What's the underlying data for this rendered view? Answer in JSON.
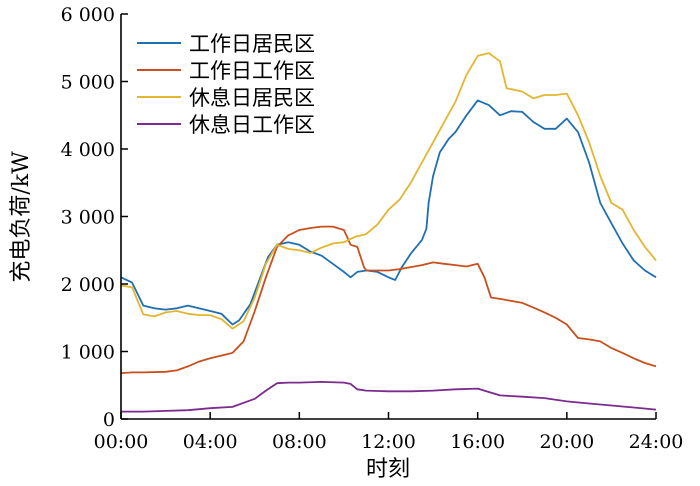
{
  "chart_data": {
    "type": "line",
    "title": "",
    "xlabel": "时刻",
    "ylabel": "充电负荷/kW",
    "xlim": [
      0,
      24
    ],
    "ylim": [
      0,
      6000
    ],
    "x_ticks": [
      0,
      4,
      8,
      12,
      16,
      20,
      24
    ],
    "x_tick_labels": [
      "00:00",
      "04:00",
      "08:00",
      "12:00",
      "16:00",
      "20:00",
      "24:00"
    ],
    "y_ticks": [
      0,
      1000,
      2000,
      3000,
      4000,
      5000,
      6000
    ],
    "y_tick_labels": [
      "0",
      "1 000",
      "2 000",
      "3 000",
      "4 000",
      "5 000",
      "6 000"
    ],
    "grid": false,
    "legend_position": "top-left",
    "series": [
      {
        "name": "工作日居民区",
        "color": "#1f6fb2",
        "points": [
          [
            0,
            2100
          ],
          [
            0.5,
            2020
          ],
          [
            1,
            1680
          ],
          [
            1.5,
            1640
          ],
          [
            2,
            1620
          ],
          [
            2.5,
            1640
          ],
          [
            3,
            1680
          ],
          [
            3.5,
            1640
          ],
          [
            4,
            1600
          ],
          [
            4.5,
            1560
          ],
          [
            5,
            1400
          ],
          [
            5.3,
            1460
          ],
          [
            5.8,
            1700
          ],
          [
            6.2,
            2050
          ],
          [
            6.6,
            2400
          ],
          [
            7,
            2580
          ],
          [
            7.5,
            2620
          ],
          [
            8,
            2580
          ],
          [
            8.5,
            2480
          ],
          [
            9,
            2420
          ],
          [
            9.5,
            2300
          ],
          [
            10,
            2180
          ],
          [
            10.3,
            2100
          ],
          [
            10.6,
            2180
          ],
          [
            11,
            2200
          ],
          [
            11.5,
            2180
          ],
          [
            12,
            2100
          ],
          [
            12.3,
            2060
          ],
          [
            12.6,
            2250
          ],
          [
            13,
            2450
          ],
          [
            13.5,
            2650
          ],
          [
            13.7,
            2820
          ],
          [
            13.8,
            3200
          ],
          [
            14,
            3600
          ],
          [
            14.3,
            3950
          ],
          [
            14.7,
            4150
          ],
          [
            15,
            4250
          ],
          [
            15.5,
            4500
          ],
          [
            16,
            4720
          ],
          [
            16.5,
            4650
          ],
          [
            17,
            4500
          ],
          [
            17.5,
            4560
          ],
          [
            18,
            4550
          ],
          [
            18.5,
            4400
          ],
          [
            19,
            4300
          ],
          [
            19.5,
            4300
          ],
          [
            20,
            4450
          ],
          [
            20.5,
            4250
          ],
          [
            21,
            3800
          ],
          [
            21.5,
            3200
          ],
          [
            22,
            2900
          ],
          [
            22.5,
            2600
          ],
          [
            23,
            2350
          ],
          [
            23.5,
            2200
          ],
          [
            24,
            2100
          ]
        ]
      },
      {
        "name": "工作日工作区",
        "color": "#c8501e",
        "points": [
          [
            0,
            680
          ],
          [
            0.5,
            690
          ],
          [
            1,
            690
          ],
          [
            2,
            700
          ],
          [
            2.5,
            720
          ],
          [
            3,
            780
          ],
          [
            3.5,
            850
          ],
          [
            4,
            900
          ],
          [
            4.5,
            940
          ],
          [
            5,
            980
          ],
          [
            5.5,
            1150
          ],
          [
            6,
            1600
          ],
          [
            6.5,
            2100
          ],
          [
            7,
            2550
          ],
          [
            7.5,
            2720
          ],
          [
            8,
            2800
          ],
          [
            8.5,
            2830
          ],
          [
            9,
            2850
          ],
          [
            9.5,
            2850
          ],
          [
            10,
            2800
          ],
          [
            10.3,
            2580
          ],
          [
            10.6,
            2550
          ],
          [
            10.9,
            2250
          ],
          [
            11,
            2200
          ],
          [
            11.5,
            2200
          ],
          [
            12,
            2200
          ],
          [
            12.5,
            2220
          ],
          [
            13,
            2250
          ],
          [
            13.5,
            2280
          ],
          [
            14,
            2320
          ],
          [
            14.5,
            2300
          ],
          [
            15,
            2280
          ],
          [
            15.5,
            2260
          ],
          [
            16,
            2300
          ],
          [
            16.3,
            2100
          ],
          [
            16.6,
            1800
          ],
          [
            17,
            1780
          ],
          [
            17.5,
            1750
          ],
          [
            18,
            1720
          ],
          [
            18.5,
            1650
          ],
          [
            19,
            1580
          ],
          [
            19.5,
            1500
          ],
          [
            20,
            1400
          ],
          [
            20.5,
            1200
          ],
          [
            21,
            1180
          ],
          [
            21.5,
            1150
          ],
          [
            22,
            1050
          ],
          [
            22.5,
            980
          ],
          [
            23,
            900
          ],
          [
            23.5,
            830
          ],
          [
            24,
            780
          ]
        ]
      },
      {
        "name": "休息日居民区",
        "color": "#e3b531",
        "points": [
          [
            0,
            1980
          ],
          [
            0.5,
            1950
          ],
          [
            1,
            1550
          ],
          [
            1.5,
            1520
          ],
          [
            2,
            1580
          ],
          [
            2.5,
            1600
          ],
          [
            3,
            1560
          ],
          [
            3.5,
            1540
          ],
          [
            4,
            1540
          ],
          [
            4.5,
            1480
          ],
          [
            5,
            1340
          ],
          [
            5.5,
            1450
          ],
          [
            6,
            1800
          ],
          [
            6.5,
            2300
          ],
          [
            7,
            2580
          ],
          [
            7.5,
            2520
          ],
          [
            8,
            2500
          ],
          [
            8.5,
            2460
          ],
          [
            9,
            2540
          ],
          [
            9.5,
            2600
          ],
          [
            10,
            2620
          ],
          [
            10.5,
            2700
          ],
          [
            11,
            2740
          ],
          [
            11.5,
            2880
          ],
          [
            12,
            3100
          ],
          [
            12.5,
            3250
          ],
          [
            13,
            3500
          ],
          [
            13.5,
            3800
          ],
          [
            14,
            4100
          ],
          [
            14.5,
            4400
          ],
          [
            15,
            4700
          ],
          [
            15.5,
            5100
          ],
          [
            16,
            5380
          ],
          [
            16.5,
            5420
          ],
          [
            17,
            5300
          ],
          [
            17.3,
            4900
          ],
          [
            17.6,
            4880
          ],
          [
            18,
            4850
          ],
          [
            18.5,
            4750
          ],
          [
            19,
            4800
          ],
          [
            19.5,
            4800
          ],
          [
            20,
            4820
          ],
          [
            20.5,
            4500
          ],
          [
            21,
            4100
          ],
          [
            21.5,
            3600
          ],
          [
            22,
            3200
          ],
          [
            22.5,
            3100
          ],
          [
            23,
            2800
          ],
          [
            23.5,
            2550
          ],
          [
            24,
            2350
          ]
        ]
      },
      {
        "name": "休息日工作区",
        "color": "#7b2a8e",
        "points": [
          [
            0,
            110
          ],
          [
            1,
            110
          ],
          [
            2,
            120
          ],
          [
            3,
            130
          ],
          [
            4,
            160
          ],
          [
            5,
            180
          ],
          [
            6,
            300
          ],
          [
            6.5,
            420
          ],
          [
            7,
            530
          ],
          [
            7.5,
            540
          ],
          [
            8,
            540
          ],
          [
            9,
            550
          ],
          [
            10,
            540
          ],
          [
            10.3,
            520
          ],
          [
            10.6,
            440
          ],
          [
            11,
            420
          ],
          [
            12,
            410
          ],
          [
            13,
            410
          ],
          [
            14,
            420
          ],
          [
            15,
            440
          ],
          [
            16,
            450
          ],
          [
            16.5,
            400
          ],
          [
            17,
            350
          ],
          [
            18,
            330
          ],
          [
            19,
            310
          ],
          [
            20,
            260
          ],
          [
            21,
            230
          ],
          [
            22,
            200
          ],
          [
            23,
            170
          ],
          [
            24,
            140
          ]
        ]
      }
    ]
  }
}
